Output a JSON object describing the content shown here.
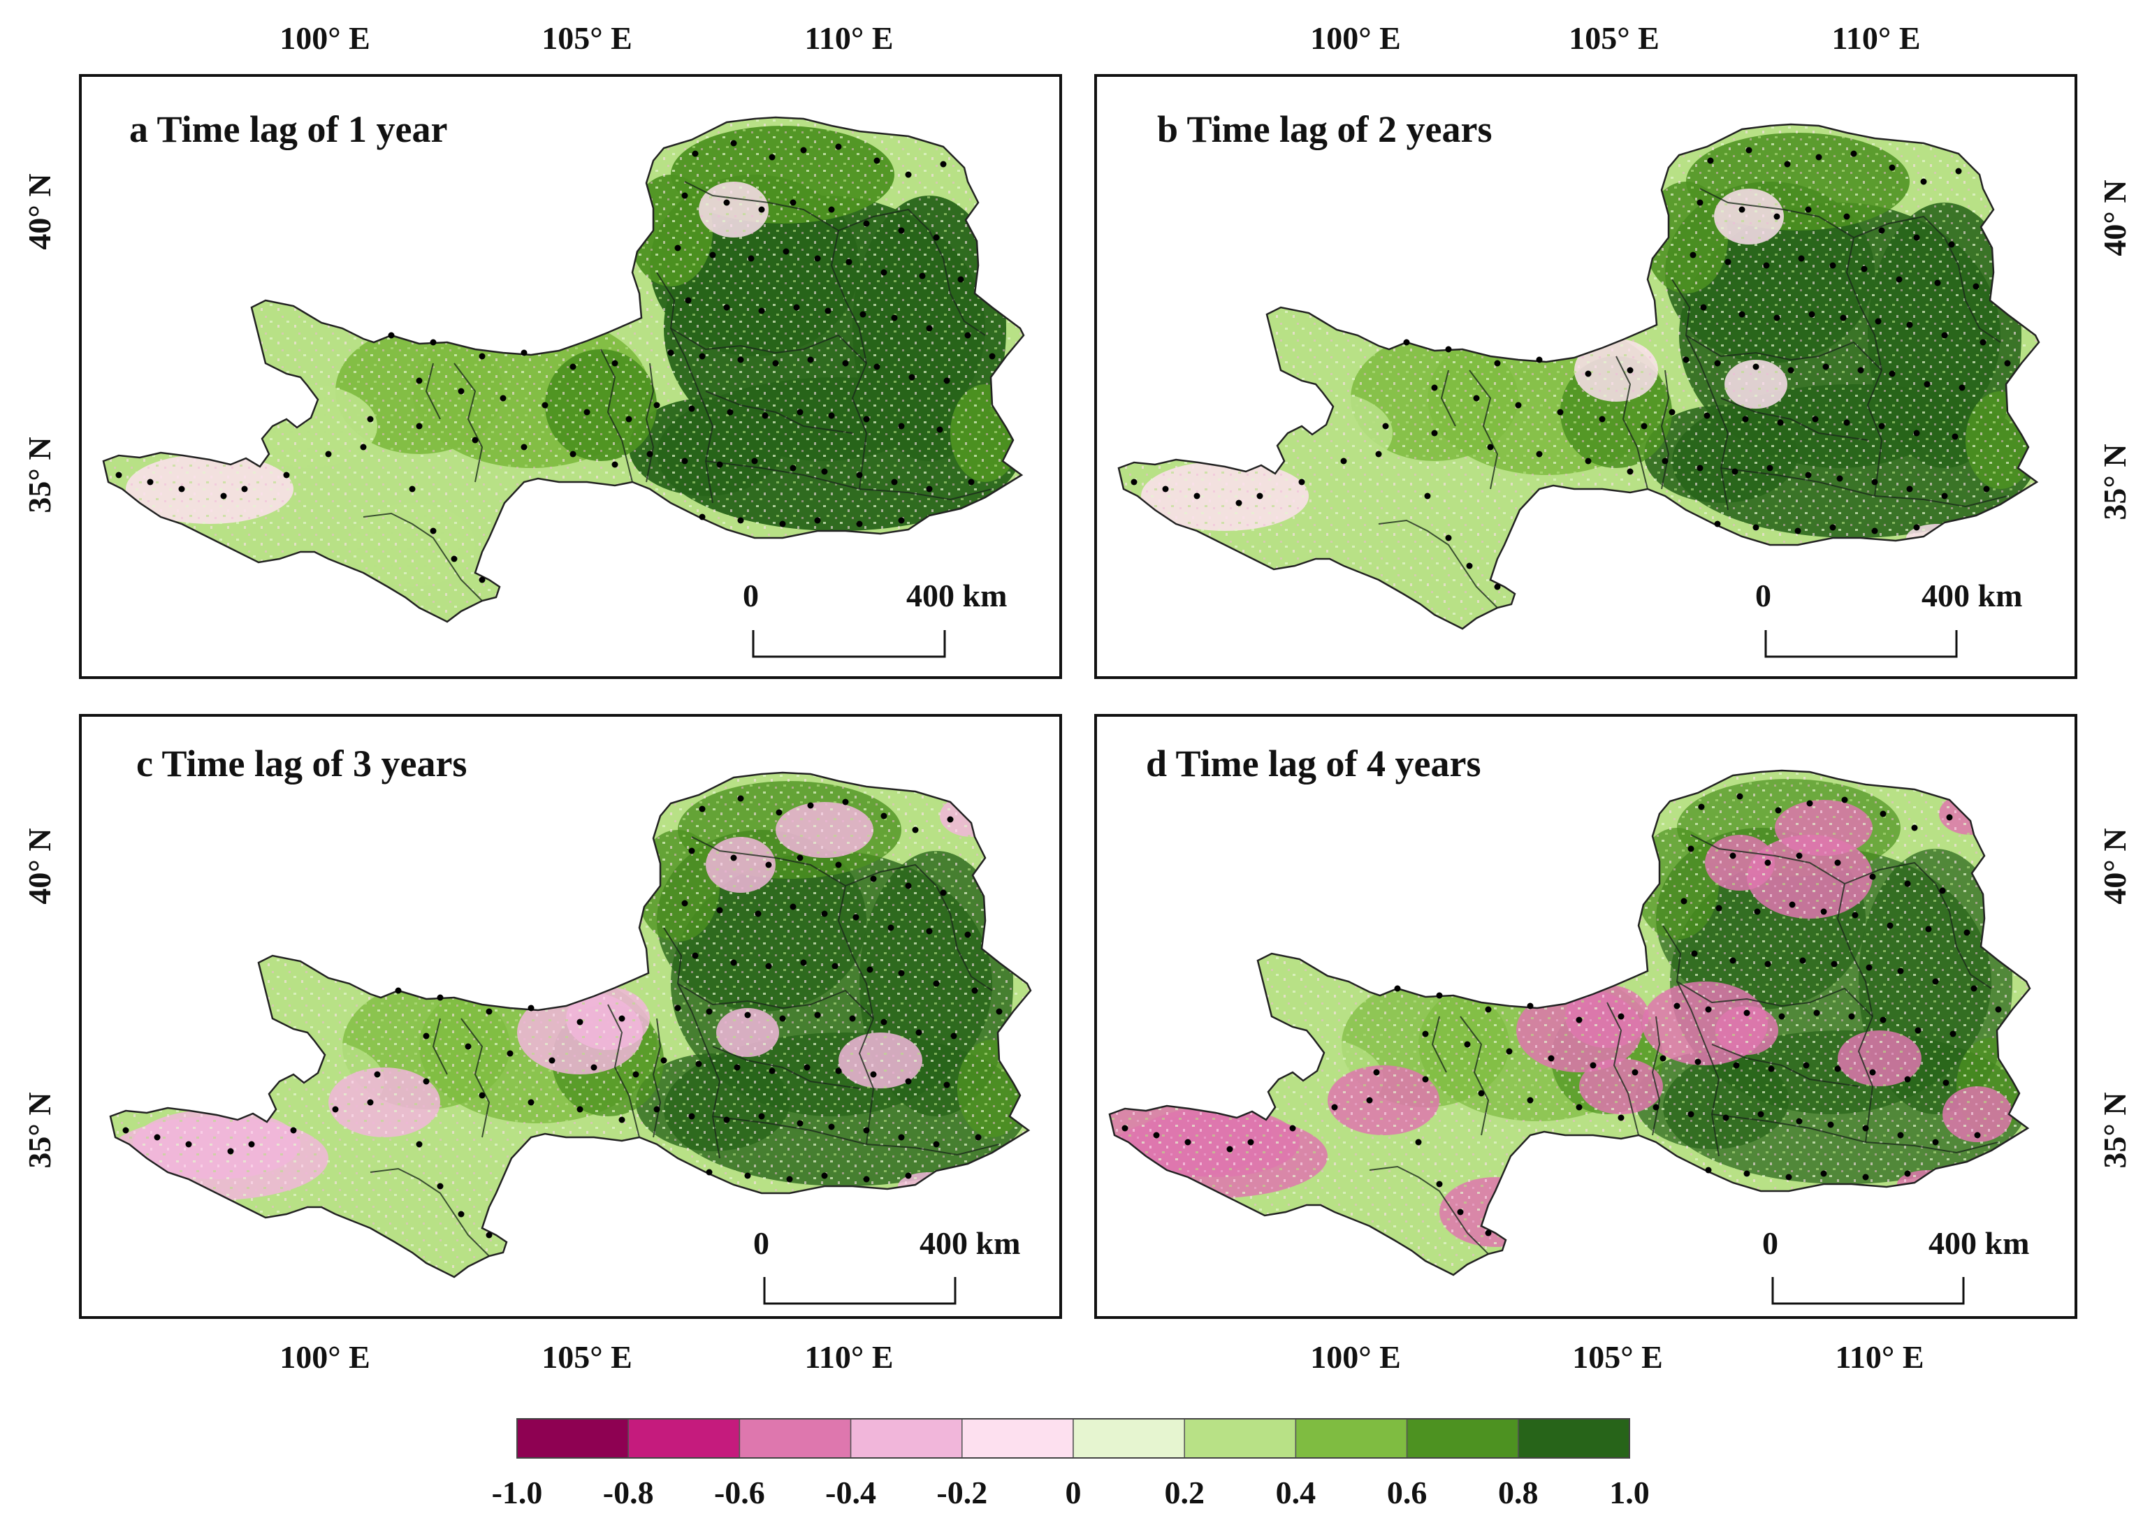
{
  "panels": [
    {
      "id": "a",
      "title": "a Time lag of 1 year",
      "pink_level": 1
    },
    {
      "id": "b",
      "title": "b Time lag of 2 years",
      "pink_level": 2
    },
    {
      "id": "c",
      "title": "c Time lag of 3 years",
      "pink_level": 3
    },
    {
      "id": "d",
      "title": "d Time lag of 4 years",
      "pink_level": 4
    }
  ],
  "axes": {
    "lon_labels": [
      "100° E",
      "105° E",
      "110° E"
    ],
    "lat_labels": [
      "40° N",
      "35° N"
    ]
  },
  "scalebar": {
    "start": "0",
    "end": "400 km"
  },
  "legend": {
    "colors": [
      "#8e0152",
      "#c51b7d",
      "#de77ae",
      "#f1b6da",
      "#fde0ef",
      "#e6f5d0",
      "#b8e186",
      "#7fbc41",
      "#4d9221",
      "#276419"
    ],
    "labels": [
      "-1.0",
      "-0.8",
      "-0.6",
      "-0.4",
      "-0.2",
      "0",
      "0.2",
      "0.4",
      "0.6",
      "0.8",
      "1.0"
    ]
  }
}
